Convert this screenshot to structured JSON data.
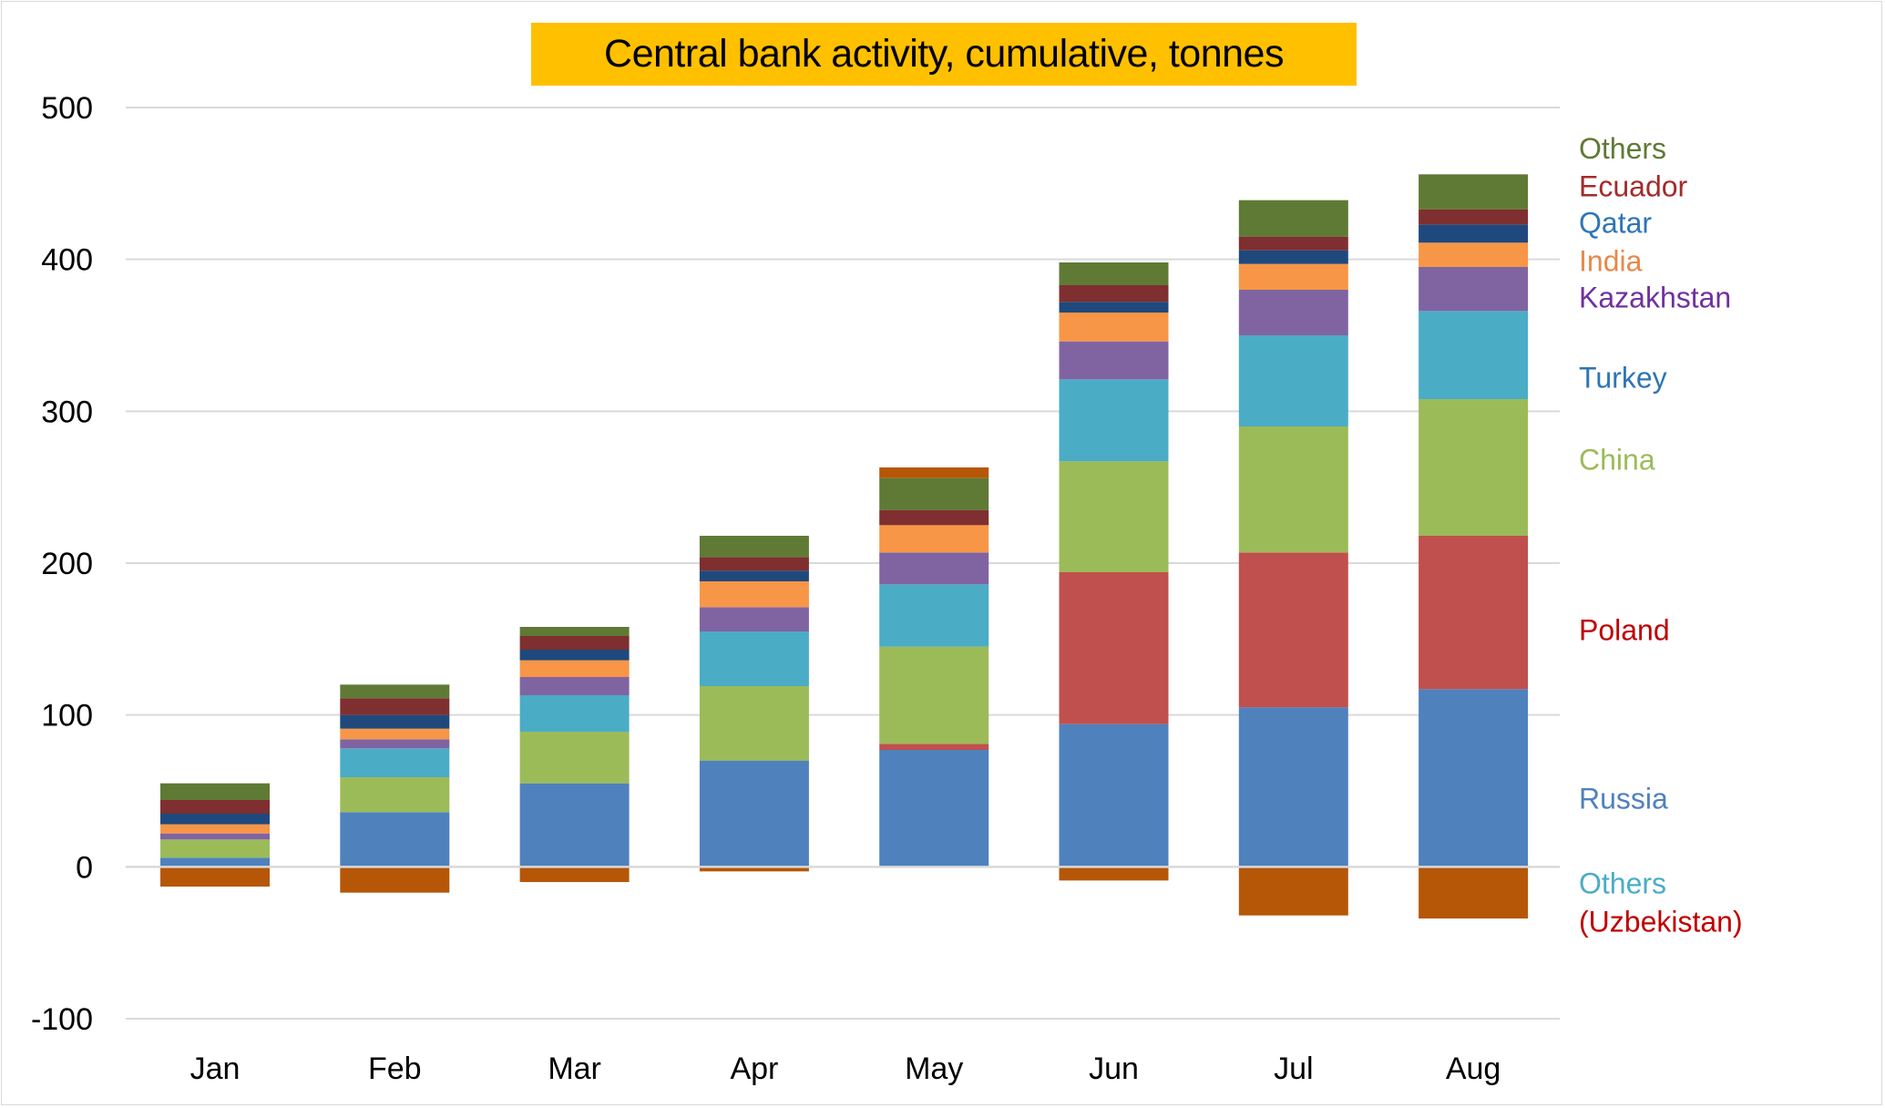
{
  "chart_data": {
    "type": "bar",
    "stacked": true,
    "title": "Central bank activity, cumulative, tonnes",
    "xlabel": "",
    "ylabel": "",
    "ylim": [
      -100,
      500
    ],
    "yticks": [
      "500",
      "400",
      "300",
      "200",
      "100",
      "0",
      "-100"
    ],
    "ytick_values": [
      500,
      400,
      300,
      200,
      100,
      0,
      -100
    ],
    "grid": true,
    "legend_position": "right",
    "categories": [
      "Jan",
      "Feb",
      "Mar",
      "Apr",
      "May",
      "Jun",
      "Jul",
      "Aug"
    ],
    "series": [
      {
        "key": "russia",
        "color": "#4f81bd",
        "values": [
          6,
          36,
          55,
          70,
          77,
          94,
          105,
          117
        ]
      },
      {
        "key": "poland",
        "color": "#c0504d",
        "values": [
          0,
          0,
          0,
          0,
          4,
          100,
          102,
          101
        ]
      },
      {
        "key": "china",
        "color": "#9bbb59",
        "values": [
          12,
          23,
          34,
          49,
          64,
          73,
          83,
          90
        ]
      },
      {
        "key": "turkey",
        "color": "#4bacc6",
        "values": [
          0,
          19,
          24,
          36,
          41,
          54,
          60,
          58
        ]
      },
      {
        "key": "kazakhstan",
        "color": "#8064a2",
        "values": [
          4,
          6,
          12,
          16,
          21,
          25,
          30,
          29
        ]
      },
      {
        "key": "india",
        "color": "#f79646",
        "values": [
          6,
          7,
          11,
          17,
          18,
          19,
          17,
          16
        ]
      },
      {
        "key": "qatar",
        "color": "#1f497d",
        "values": [
          7,
          9,
          7,
          7,
          0,
          7,
          9,
          12
        ]
      },
      {
        "key": "ecuador",
        "color": "#7f2f2f",
        "values": [
          9,
          11,
          9,
          9,
          10,
          11,
          9,
          10
        ]
      },
      {
        "key": "others",
        "color": "#5f7a35",
        "values": [
          11,
          9,
          6,
          14,
          21,
          15,
          24,
          23
        ]
      },
      {
        "key": "others_negative",
        "color": "#b65708",
        "values": [
          -13,
          -17,
          -10,
          -3,
          7,
          -9,
          -32,
          -34
        ]
      }
    ],
    "series_labels": [
      {
        "text": "Others",
        "color": "#5f7a35",
        "value": 473
      },
      {
        "text": "Ecuador",
        "color": "#a52a2a",
        "value": 448
      },
      {
        "text": "Qatar",
        "color": "#2e75b6",
        "value": 424
      },
      {
        "text": "India",
        "color": "#e6894b",
        "value": 399
      },
      {
        "text": "Kazakhstan",
        "color": "#7030a0",
        "value": 375
      },
      {
        "text": "Turkey",
        "color": "#2e75b6",
        "value": 322
      },
      {
        "text": "China",
        "color": "#9bbb59",
        "value": 268
      },
      {
        "text": "Poland",
        "color": "#c00000",
        "value": 156
      },
      {
        "text": "Russia",
        "color": "#4f81bd",
        "value": 45
      },
      {
        "text": "Others",
        "color": "#4bacc6",
        "value": -11
      },
      {
        "text": "(Uzbekistan)",
        "color": "#c00000",
        "value": -36
      }
    ]
  }
}
